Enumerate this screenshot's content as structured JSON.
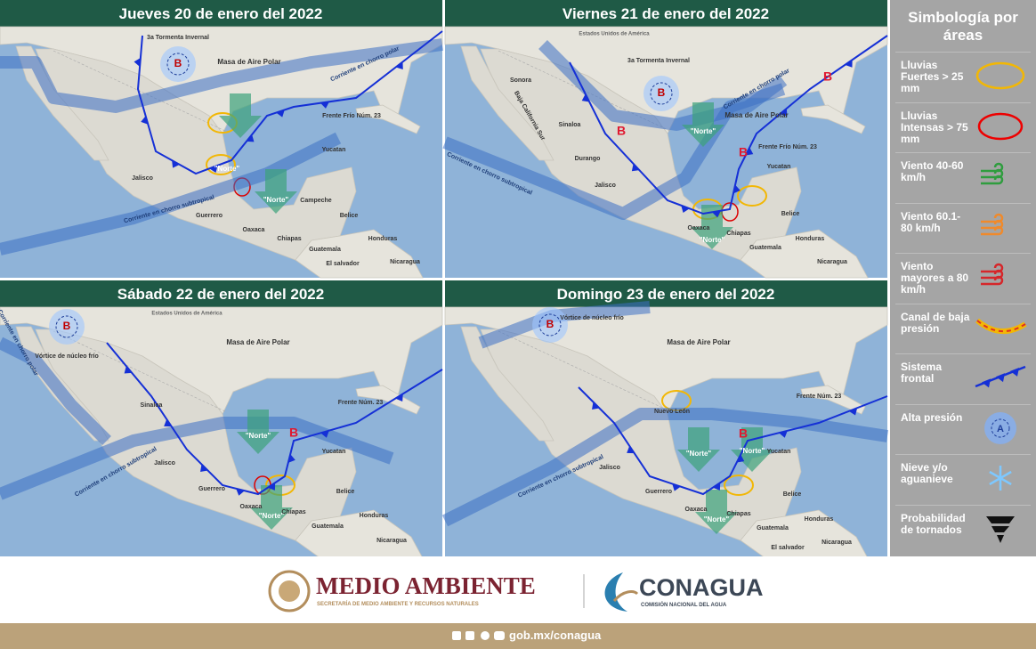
{
  "panels": [
    {
      "title": "Jueves 20 de enero del 2022",
      "labels": [
        "3a Tormenta Invernal",
        "Masa de Aire Polar",
        "Corriente en chorro polar",
        "Frente Frío Núm. 23",
        "B",
        "\"Norte\"",
        "\"Norte\"",
        "Corriente en chorro subtropical",
        "Jalisco",
        "Guerrero",
        "Oaxaca",
        "Chiapas",
        "Yucatan",
        "Campeche",
        "Belice",
        "Guatemala",
        "Honduras",
        "Nicaragua",
        "El salvador"
      ]
    },
    {
      "title": "Viernes 21 de enero del 2022",
      "labels": [
        "Estados Unidos de América",
        "3a Tormenta Invernal",
        "B",
        "Sonora",
        "Masa de Aire Polar",
        "Corriente en chorro polar",
        "Frente Frío Núm. 23",
        "B",
        "B",
        "B",
        "\"Norte\"",
        "\"Norte\"",
        "Corriente en chorro subtropical",
        "Durango",
        "Sinaloa",
        "Baja California Sur",
        "Jalisco",
        "Yucatan",
        "Oaxaca",
        "Chiapas",
        "Guatemala",
        "Belice",
        "Honduras",
        "Nicaragua"
      ]
    },
    {
      "title": "Sábado 22 de enero del 2022",
      "labels": [
        "Estados Unidos de América",
        "B",
        "Vórtice de núcleo frío",
        "Corriente en chorro polar",
        "Masa de Aire Polar",
        "Frente Núm. 23",
        "B",
        "\"Norte\"",
        "\"Norte\"",
        "Corriente en chorro subtropical",
        "Sinaloa",
        "Jalisco",
        "Guerrero",
        "Oaxaca",
        "Chiapas",
        "Yucatan",
        "Guatemala",
        "Honduras",
        "Nicaragua",
        "Belice"
      ]
    },
    {
      "title": "Domingo 23 de enero del 2022",
      "labels": [
        "B",
        "Vórtice de núcleo frío",
        "Masa de Aire Polar",
        "Frente Núm. 23",
        "B",
        "\"Norte\"",
        "\"Norte\"",
        "\"Norte\"",
        "Corriente en chorro subtropical",
        "Nuevo León",
        "Jalisco",
        "Guerrero",
        "Oaxaca",
        "Chiapas",
        "Yucatan",
        "Guatemala",
        "Honduras",
        "Nicaragua",
        "El salvador",
        "Belice"
      ]
    }
  ],
  "legend": {
    "title": "Simbología por áreas",
    "items": [
      "Lluvias Fuertes > 25 mm",
      "Lluvias Intensas > 75 mm",
      "Viento 40-60 km/h",
      "Viento 60.1-80 km/h",
      "Viento mayores a 80 km/h",
      "Canal de baja presión",
      "Sistema frontal",
      "Alta presión",
      "Nieve y/o aguanieve",
      "Probabilidad de tornados"
    ],
    "high_letter": "A"
  },
  "footer": {
    "agency1": "MEDIO AMBIENTE",
    "agency1_sub": "SECRETARÍA DE MEDIO AMBIENTE Y RECURSOS NATURALES",
    "agency2": "CONAGUA",
    "agency2_sub": "COMISIÓN NACIONAL DEL AGUA",
    "url": "gob.mx/conagua"
  }
}
